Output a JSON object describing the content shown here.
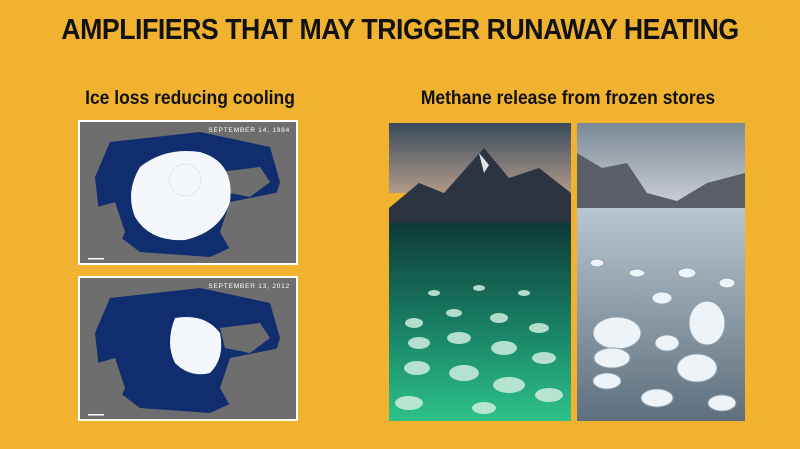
{
  "slide": {
    "title": "AMPLIFIERS THAT MAY TRIGGER RUNAWAY HEATING",
    "left_heading": "Ice loss reducing cooling",
    "right_heading": "Methane release from frozen stores"
  },
  "maps": [
    {
      "date": "SEPTEMBER 14, 1984"
    },
    {
      "date": "SEPTEMBER 13, 2012"
    }
  ],
  "colors": {
    "background": "#F1B230",
    "ocean": "#102D6E",
    "land": "#6E6E6E",
    "ice": "#F4F8FC"
  }
}
